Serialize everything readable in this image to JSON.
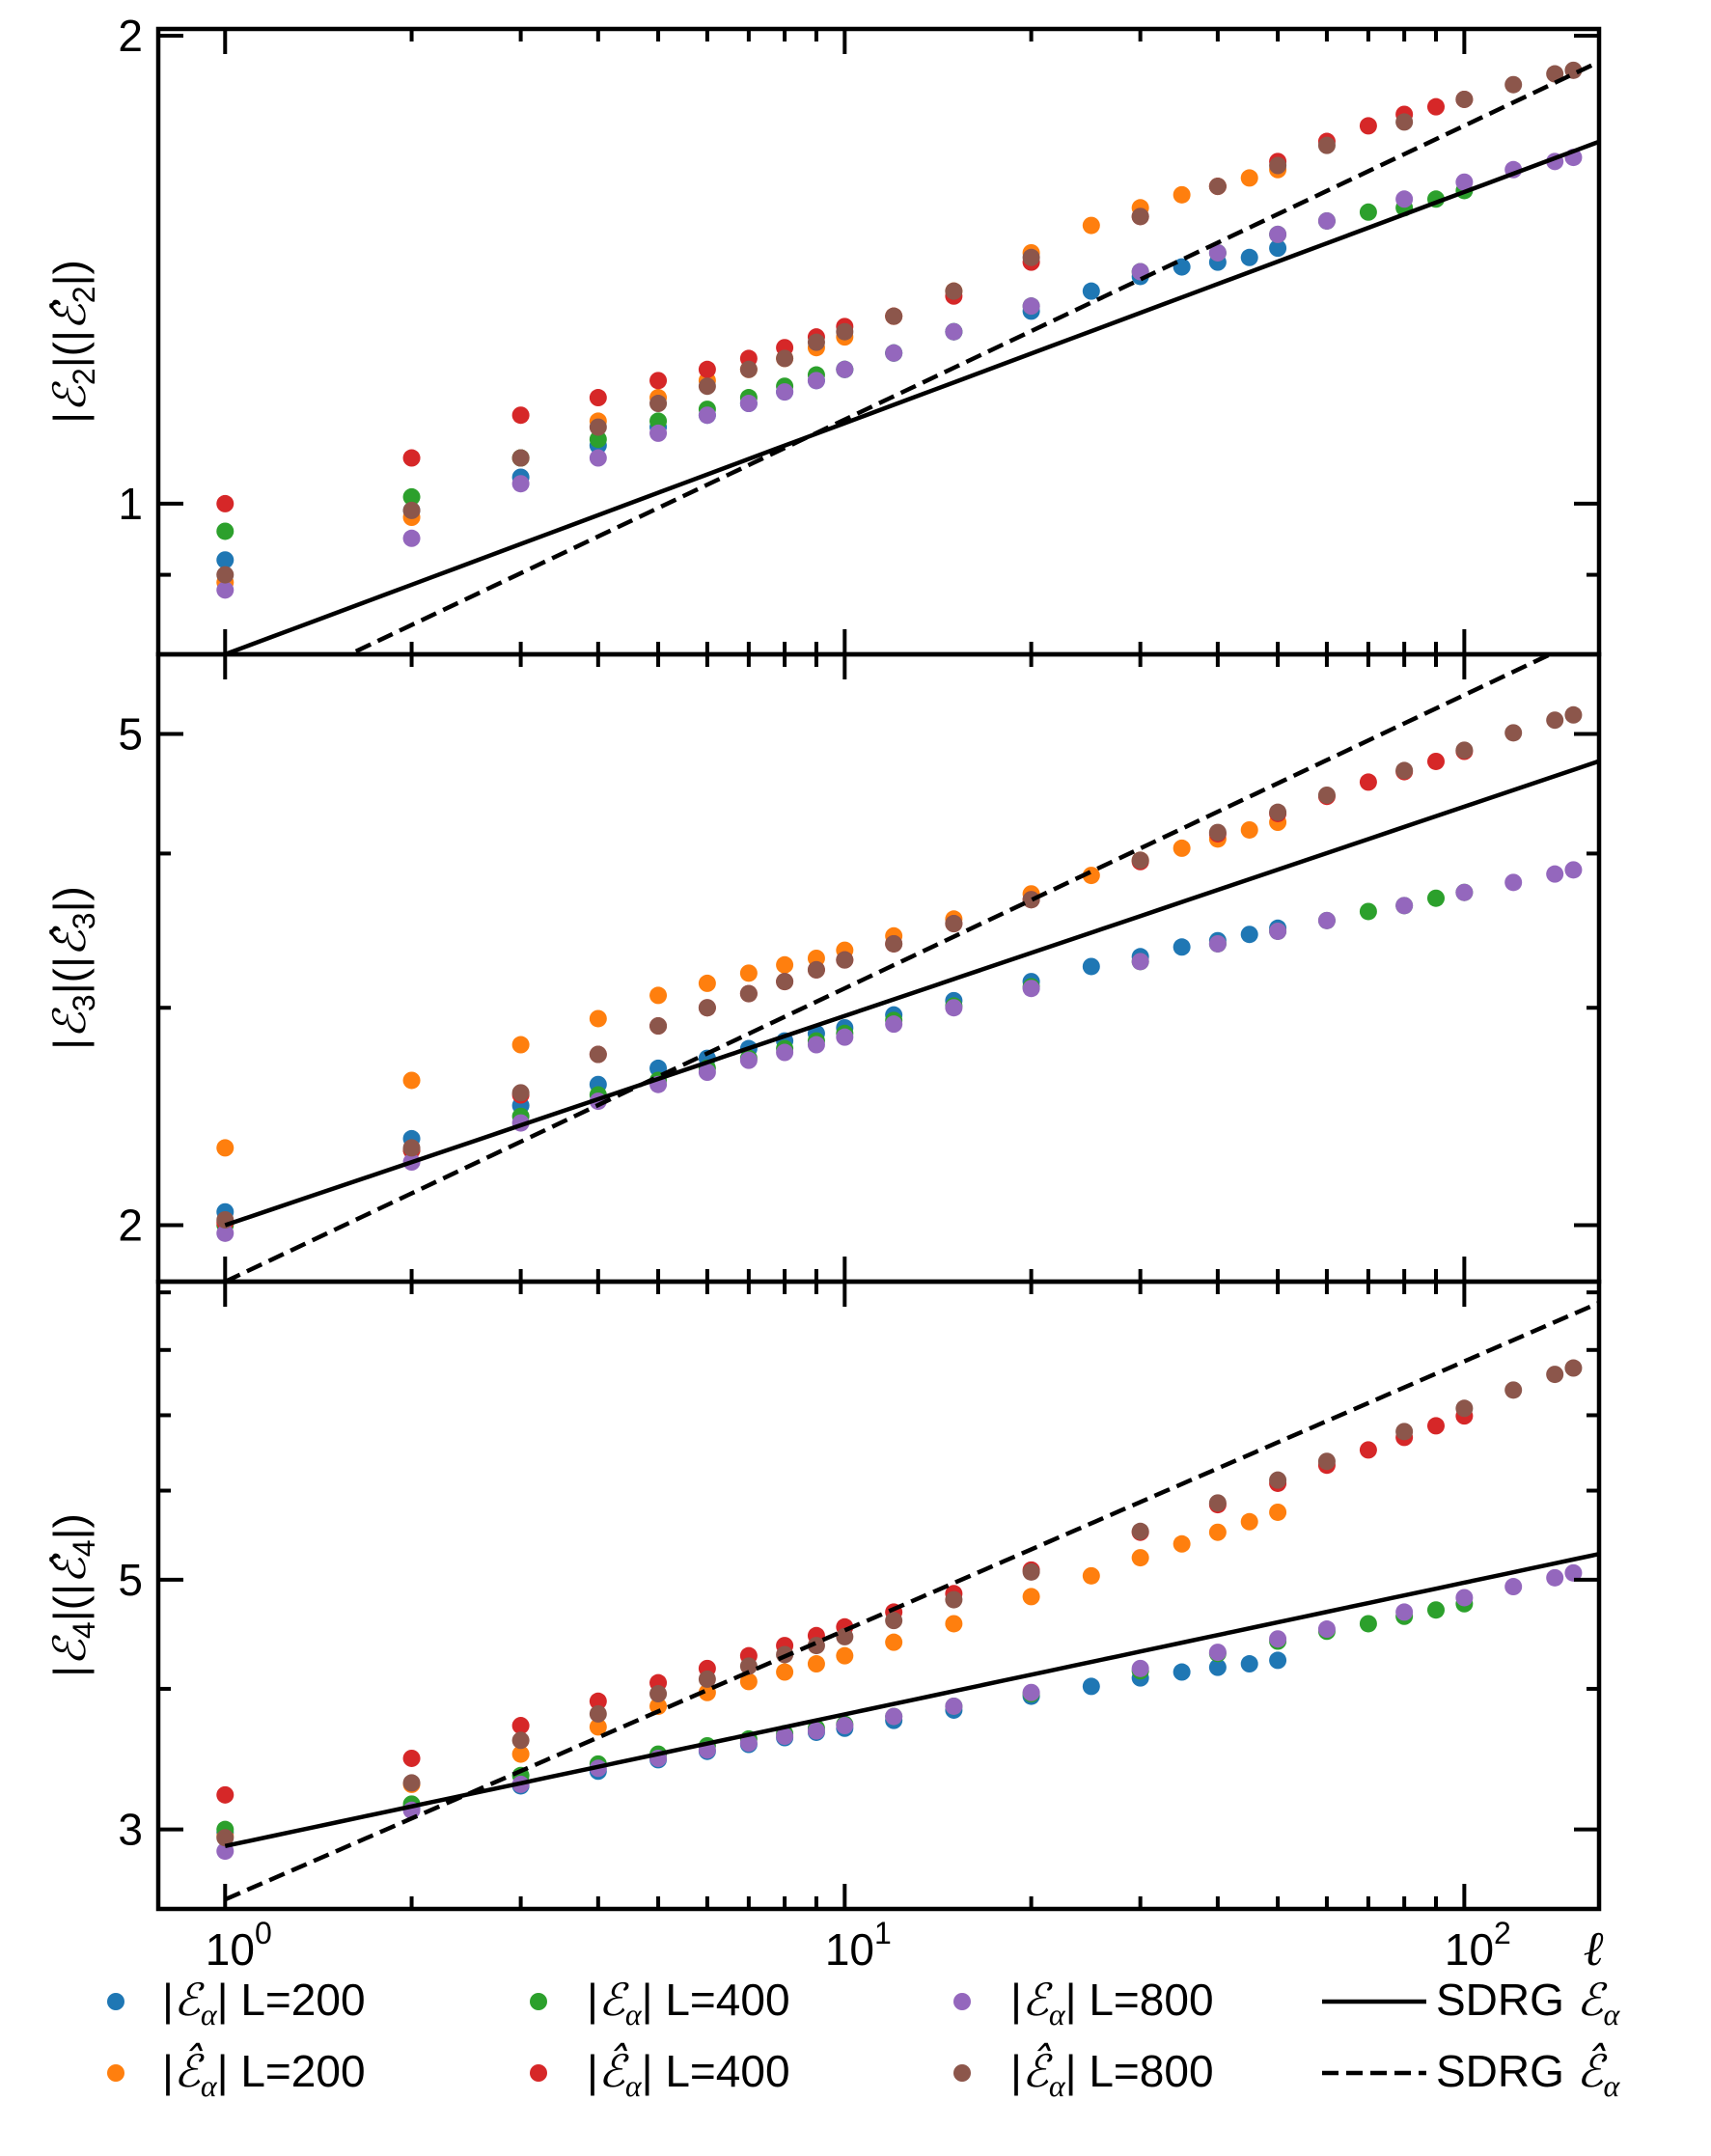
{
  "chart_data": [
    {
      "type": "scatter",
      "panel": "top",
      "ylabel": "|ℰ₂|(|ℰ̂₂|)",
      "ylabel_parts": {
        "pre": "|",
        "sym": "ℰ",
        "sub": "2",
        "mid": "|(|",
        "sym2": "ℰ̂",
        "sub2": "2",
        "post": "|)"
      },
      "yscale": "log",
      "ylim": [
        0.8,
        2.02
      ],
      "yticks": [
        {
          "value": 1,
          "label": "1"
        },
        {
          "value": 2,
          "label": "2"
        }
      ],
      "xscale": "log",
      "xlim": [
        0.78,
        165
      ],
      "fit_solid": {
        "a": 0.8,
        "b": 0.1487
      },
      "fit_dashed": {
        "a": 0.733,
        "b": 0.189
      },
      "series": [
        {
          "name": "|ℰα| L=200",
          "color": "#1f77b4",
          "x": [
            1,
            2,
            3,
            4,
            5,
            6,
            7,
            8,
            9,
            10,
            12,
            15,
            20,
            25,
            30,
            35,
            40,
            45,
            50
          ],
          "y": [
            0.92,
            0.99,
            1.04,
            1.09,
            1.12,
            1.14,
            1.16,
            1.18,
            1.2,
            1.22,
            1.25,
            1.29,
            1.33,
            1.37,
            1.4,
            1.42,
            1.43,
            1.44,
            1.46
          ]
        },
        {
          "name": "|ℰ̂α| L=200",
          "color": "#ff7f0e",
          "x": [
            1,
            2,
            3,
            4,
            5,
            6,
            7,
            8,
            9,
            10,
            12,
            15,
            20,
            25,
            30,
            35,
            40,
            45,
            50
          ],
          "y": [
            0.89,
            0.98,
            1.07,
            1.13,
            1.17,
            1.2,
            1.22,
            1.24,
            1.26,
            1.28,
            1.32,
            1.37,
            1.45,
            1.51,
            1.55,
            1.58,
            1.6,
            1.62,
            1.64
          ]
        },
        {
          "name": "|ℰα| L=400",
          "color": "#2ca02c",
          "x": [
            1,
            2,
            3,
            4,
            5,
            6,
            7,
            8,
            9,
            10,
            12,
            15,
            20,
            30,
            40,
            50,
            60,
            70,
            80,
            90,
            100
          ],
          "y": [
            0.96,
            1.01,
            1.07,
            1.1,
            1.13,
            1.15,
            1.17,
            1.19,
            1.21,
            1.22,
            1.25,
            1.29,
            1.34,
            1.41,
            1.45,
            1.49,
            1.52,
            1.54,
            1.55,
            1.57,
            1.59
          ]
        },
        {
          "name": "|ℰ̂α| L=400",
          "color": "#d62728",
          "x": [
            1,
            2,
            3,
            4,
            5,
            6,
            7,
            8,
            9,
            10,
            12,
            15,
            20,
            30,
            40,
            50,
            60,
            70,
            80,
            90,
            100
          ],
          "y": [
            1.0,
            1.07,
            1.14,
            1.17,
            1.2,
            1.22,
            1.24,
            1.26,
            1.28,
            1.3,
            1.32,
            1.36,
            1.43,
            1.53,
            1.6,
            1.66,
            1.71,
            1.75,
            1.78,
            1.8,
            1.82
          ]
        },
        {
          "name": "|ℰα| L=800",
          "color": "#9467bd",
          "x": [
            1,
            2,
            3,
            4,
            5,
            6,
            7,
            8,
            9,
            10,
            12,
            15,
            20,
            30,
            40,
            50,
            60,
            80,
            100,
            120,
            140,
            150
          ],
          "y": [
            0.88,
            0.95,
            1.03,
            1.07,
            1.11,
            1.14,
            1.16,
            1.18,
            1.2,
            1.22,
            1.25,
            1.29,
            1.34,
            1.41,
            1.45,
            1.49,
            1.52,
            1.57,
            1.61,
            1.64,
            1.66,
            1.67
          ]
        },
        {
          "name": "|ℰ̂α| L=800",
          "color": "#8c564b",
          "x": [
            1,
            2,
            3,
            4,
            5,
            6,
            7,
            8,
            9,
            10,
            12,
            15,
            20,
            30,
            40,
            50,
            60,
            80,
            100,
            120,
            140,
            150
          ],
          "y": [
            0.9,
            0.99,
            1.07,
            1.12,
            1.16,
            1.19,
            1.22,
            1.24,
            1.27,
            1.29,
            1.32,
            1.37,
            1.44,
            1.53,
            1.6,
            1.65,
            1.7,
            1.76,
            1.82,
            1.86,
            1.89,
            1.9
          ]
        }
      ]
    },
    {
      "type": "scatter",
      "panel": "middle",
      "ylabel": "|ℰ₃|(|ℰ̂₃|)",
      "ylabel_parts": {
        "pre": "|",
        "sym": "ℰ",
        "sub": "3",
        "mid": "|(|",
        "sym2": "ℰ̂",
        "sub2": "3",
        "post": "|)"
      },
      "yscale": "log",
      "ylim": [
        1.8,
        5.8
      ],
      "yticks": [
        {
          "value": 2,
          "label": "2"
        },
        {
          "value": 5,
          "label": "5"
        }
      ],
      "xscale": "log",
      "xlim": [
        0.78,
        165
      ],
      "fit_solid": {
        "a": 2.0,
        "b": 0.1695
      },
      "fit_dashed": {
        "a": 1.8,
        "b": 0.2376
      },
      "series": [
        {
          "name": "|ℰα| L=200",
          "color": "#1f77b4",
          "x": [
            1,
            2,
            3,
            4,
            5,
            6,
            7,
            8,
            9,
            10,
            12,
            15,
            20,
            25,
            30,
            35,
            40,
            45,
            50
          ],
          "y": [
            2.05,
            2.35,
            2.5,
            2.6,
            2.68,
            2.73,
            2.78,
            2.82,
            2.86,
            2.89,
            2.96,
            3.04,
            3.15,
            3.24,
            3.3,
            3.36,
            3.4,
            3.44,
            3.48
          ]
        },
        {
          "name": "|ℰ̂α| L=200",
          "color": "#ff7f0e",
          "x": [
            1,
            2,
            3,
            4,
            5,
            6,
            7,
            8,
            9,
            10,
            12,
            15,
            20,
            25,
            30,
            35,
            40,
            45,
            50
          ],
          "y": [
            2.31,
            2.62,
            2.8,
            2.94,
            3.07,
            3.14,
            3.2,
            3.25,
            3.29,
            3.34,
            3.43,
            3.54,
            3.71,
            3.84,
            3.95,
            4.04,
            4.11,
            4.18,
            4.24
          ]
        },
        {
          "name": "|ℰα| L=400",
          "color": "#2ca02c",
          "x": [
            1,
            2,
            3,
            4,
            5,
            6,
            7,
            8,
            9,
            10,
            12,
            15,
            20,
            30,
            40,
            50,
            60,
            70,
            80,
            90,
            100
          ],
          "y": [
            2.0,
            2.3,
            2.45,
            2.55,
            2.62,
            2.68,
            2.73,
            2.78,
            2.82,
            2.86,
            2.93,
            3.01,
            3.12,
            3.27,
            3.38,
            3.46,
            3.53,
            3.59,
            3.63,
            3.68,
            3.72
          ]
        },
        {
          "name": "|ℰ̂α| L=400",
          "color": "#d62728",
          "x": [
            1,
            2,
            3,
            4,
            5,
            6,
            7,
            8,
            9,
            10,
            12,
            15,
            20,
            30,
            40,
            50,
            60,
            70,
            80,
            90,
            100
          ],
          "y": [
            2.01,
            2.3,
            2.55,
            2.75,
            2.9,
            3.0,
            3.08,
            3.15,
            3.22,
            3.28,
            3.38,
            3.51,
            3.67,
            3.94,
            4.15,
            4.31,
            4.45,
            4.57,
            4.66,
            4.75,
            4.84
          ]
        },
        {
          "name": "|ℰα| L=800",
          "color": "#9467bd",
          "x": [
            1,
            2,
            3,
            4,
            5,
            6,
            7,
            8,
            9,
            10,
            12,
            15,
            20,
            30,
            40,
            50,
            60,
            80,
            100,
            120,
            140,
            150
          ],
          "y": [
            1.97,
            2.25,
            2.42,
            2.52,
            2.6,
            2.66,
            2.72,
            2.76,
            2.8,
            2.84,
            2.91,
            3.0,
            3.11,
            3.27,
            3.38,
            3.46,
            3.53,
            3.63,
            3.72,
            3.79,
            3.85,
            3.88
          ]
        },
        {
          "name": "|ℰ̂α| L=800",
          "color": "#8c564b",
          "x": [
            1,
            2,
            3,
            4,
            5,
            6,
            7,
            8,
            9,
            10,
            12,
            15,
            20,
            30,
            40,
            50,
            60,
            80,
            100,
            120,
            140,
            150
          ],
          "y": [
            2.02,
            2.31,
            2.56,
            2.75,
            2.9,
            3.0,
            3.08,
            3.15,
            3.22,
            3.28,
            3.38,
            3.51,
            3.67,
            3.95,
            4.16,
            4.32,
            4.46,
            4.67,
            4.85,
            5.01,
            5.13,
            5.18
          ]
        }
      ]
    },
    {
      "type": "scatter",
      "panel": "bottom",
      "ylabel": "|ℰ₄|(|ℰ̂₄|)",
      "ylabel_parts": {
        "pre": "|",
        "sym": "ℰ",
        "sub": "4",
        "mid": "|(|",
        "sym2": "ℰ̂",
        "sub2": "4",
        "post": "|)"
      },
      "yscale": "log",
      "ylim": [
        2.55,
        9.2
      ],
      "yticks": [
        {
          "value": 3,
          "label": "3"
        },
        {
          "value": 5,
          "label": "5"
        }
      ],
      "xscale": "log",
      "xlim": [
        0.78,
        165
      ],
      "fit_solid": {
        "a": 2.9,
        "b": 0.117
      },
      "fit_dashed": {
        "a": 2.6,
        "b": 0.239
      },
      "series": [
        {
          "name": "|ℰα| L=200",
          "color": "#1f77b4",
          "x": [
            1,
            2,
            3,
            4,
            5,
            6,
            7,
            8,
            9,
            10,
            12,
            15,
            20,
            25,
            30,
            35,
            40,
            45,
            50
          ],
          "y": [
            2.98,
            3.13,
            3.28,
            3.38,
            3.46,
            3.52,
            3.57,
            3.62,
            3.66,
            3.69,
            3.75,
            3.83,
            3.94,
            4.02,
            4.09,
            4.14,
            4.18,
            4.21,
            4.24
          ]
        },
        {
          "name": "|ℰ̂α| L=200",
          "color": "#ff7f0e",
          "x": [
            1,
            2,
            3,
            4,
            5,
            6,
            7,
            8,
            9,
            10,
            12,
            15,
            20,
            25,
            30,
            35,
            40,
            45,
            50
          ],
          "y": [
            2.96,
            3.29,
            3.5,
            3.7,
            3.86,
            3.97,
            4.06,
            4.14,
            4.21,
            4.28,
            4.4,
            4.57,
            4.83,
            5.04,
            5.23,
            5.38,
            5.51,
            5.63,
            5.74
          ]
        },
        {
          "name": "|ℰα| L=400",
          "color": "#2ca02c",
          "x": [
            1,
            2,
            3,
            4,
            5,
            6,
            7,
            8,
            9,
            10,
            12,
            15,
            20,
            30,
            40,
            50,
            60,
            70,
            80,
            90,
            100
          ],
          "y": [
            3.0,
            3.16,
            3.35,
            3.43,
            3.5,
            3.56,
            3.61,
            3.65,
            3.69,
            3.72,
            3.78,
            3.86,
            3.96,
            4.15,
            4.3,
            4.41,
            4.5,
            4.57,
            4.64,
            4.7,
            4.76
          ]
        },
        {
          "name": "|ℰ̂α| L=400",
          "color": "#d62728",
          "x": [
            1,
            2,
            3,
            4,
            5,
            6,
            7,
            8,
            9,
            10,
            12,
            15,
            20,
            30,
            40,
            50,
            60,
            70,
            80,
            90,
            100
          ],
          "y": [
            3.22,
            3.47,
            3.71,
            3.9,
            4.05,
            4.17,
            4.28,
            4.37,
            4.46,
            4.54,
            4.68,
            4.86,
            5.1,
            5.51,
            5.83,
            6.09,
            6.32,
            6.52,
            6.69,
            6.85,
            6.99
          ]
        },
        {
          "name": "|ℰα| L=800",
          "color": "#9467bd",
          "x": [
            1,
            2,
            3,
            4,
            5,
            6,
            7,
            8,
            9,
            10,
            12,
            15,
            20,
            30,
            40,
            50,
            60,
            80,
            100,
            120,
            140,
            150
          ],
          "y": [
            2.87,
            3.12,
            3.29,
            3.4,
            3.47,
            3.53,
            3.58,
            3.63,
            3.67,
            3.71,
            3.78,
            3.86,
            3.97,
            4.17,
            4.31,
            4.43,
            4.52,
            4.68,
            4.82,
            4.93,
            5.02,
            5.07
          ]
        },
        {
          "name": "|ℰ̂α| L=800",
          "color": "#8c564b",
          "x": [
            1,
            2,
            3,
            4,
            5,
            6,
            7,
            8,
            9,
            10,
            12,
            15,
            20,
            30,
            40,
            50,
            60,
            80,
            100,
            120,
            140,
            150
          ],
          "y": [
            2.95,
            3.3,
            3.6,
            3.8,
            3.96,
            4.08,
            4.19,
            4.29,
            4.37,
            4.45,
            4.6,
            4.8,
            5.08,
            5.52,
            5.85,
            6.13,
            6.37,
            6.77,
            7.1,
            7.37,
            7.61,
            7.71
          ]
        }
      ]
    }
  ],
  "xaxis": {
    "label": "ℓ",
    "ticks": [
      {
        "value": 1,
        "base": "10",
        "exp": "0"
      },
      {
        "value": 10,
        "base": "10",
        "exp": "1"
      },
      {
        "value": 100,
        "base": "10",
        "exp": "2"
      }
    ]
  },
  "legend": {
    "entries": [
      {
        "kind": "marker",
        "color": "#1f77b4",
        "sym": "ℰ",
        "hat": false,
        "text": "L=200"
      },
      {
        "kind": "marker",
        "color": "#ff7f0e",
        "sym": "ℰ̂",
        "hat": true,
        "text": "L=200"
      },
      {
        "kind": "marker",
        "color": "#2ca02c",
        "sym": "ℰ",
        "hat": false,
        "text": "L=400"
      },
      {
        "kind": "marker",
        "color": "#d62728",
        "sym": "ℰ̂",
        "hat": true,
        "text": "L=400"
      },
      {
        "kind": "marker",
        "color": "#9467bd",
        "sym": "ℰ",
        "hat": false,
        "text": "L=800"
      },
      {
        "kind": "marker",
        "color": "#8c564b",
        "sym": "ℰ̂",
        "hat": true,
        "text": "L=800"
      },
      {
        "kind": "solid",
        "color": "#000000",
        "sym": "ℰ",
        "hat": false,
        "text": "SDRG"
      },
      {
        "kind": "dashed",
        "color": "#000000",
        "sym": "ℰ̂",
        "hat": true,
        "text": "SDRG"
      }
    ],
    "sub": "α"
  }
}
